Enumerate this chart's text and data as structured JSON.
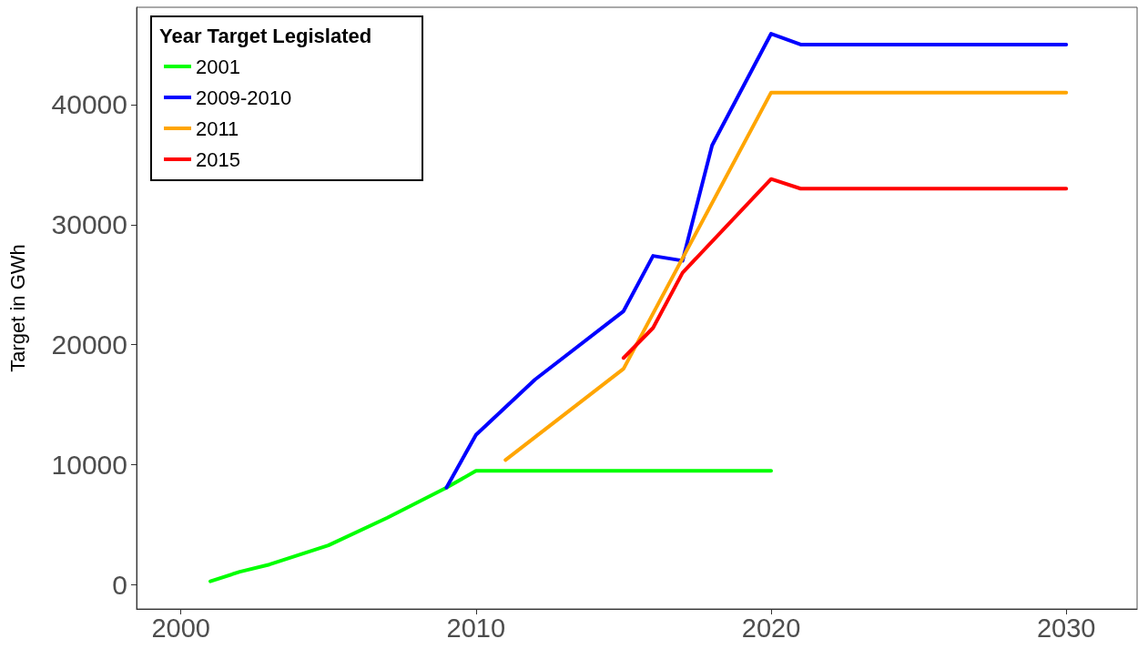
{
  "chart_data": {
    "type": "line",
    "ylabel": "Target in GWh",
    "legend_title": "Year Target Legislated",
    "legend": "top left",
    "grid": false,
    "marker": "none",
    "line_style": "solid",
    "xlim": [
      1998.5,
      2032.4
    ],
    "xticks": [
      2000,
      2010,
      2020,
      2030
    ],
    "ylim": [
      -2000,
      48100
    ],
    "yticks": [
      0,
      10000,
      20000,
      30000,
      40000
    ],
    "series": [
      {
        "name": "2001",
        "color": "#00ff00",
        "x": [
          2001,
          2002,
          2003,
          2005,
          2007,
          2009,
          2010,
          2020
        ],
        "values": [
          300,
          1100,
          1700,
          3300,
          5600,
          8100,
          9500,
          9500
        ]
      },
      {
        "name": "2009-2010",
        "color": "#0000ff",
        "x": [
          2009,
          2010,
          2012,
          2015,
          2016,
          2017,
          2018,
          2020,
          2021,
          2030
        ],
        "values": [
          8100,
          12500,
          17100,
          22800,
          27400,
          27000,
          36600,
          45900,
          45000,
          45000
        ]
      },
      {
        "name": "2011",
        "color": "#ffa500",
        "x": [
          2011,
          2015,
          2020,
          2030
        ],
        "values": [
          10400,
          18000,
          41000,
          41000
        ]
      },
      {
        "name": "2015",
        "color": "#ff0000",
        "x": [
          2015,
          2016,
          2017,
          2020,
          2021,
          2030
        ],
        "values": [
          18900,
          21400,
          26000,
          33800,
          33000,
          33000
        ]
      }
    ]
  }
}
